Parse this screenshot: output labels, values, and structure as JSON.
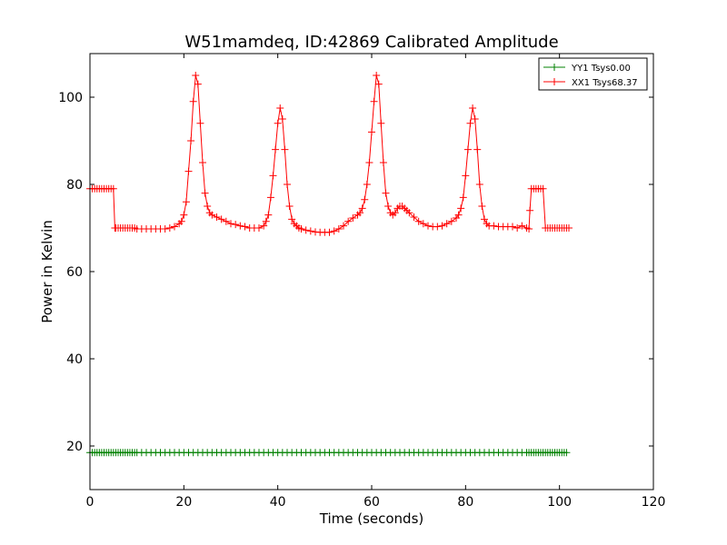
{
  "chart_data": {
    "type": "line",
    "title": "W51mamdeq, ID:42869 Calibrated Amplitude",
    "xlabel": "Time (seconds)",
    "ylabel": "Power in Kelvin",
    "xlim": [
      0,
      120
    ],
    "ylim": [
      10,
      110
    ],
    "xticks": [
      0,
      20,
      40,
      60,
      80,
      100,
      120
    ],
    "yticks": [
      20,
      40,
      60,
      80,
      100
    ],
    "grid": false,
    "legend_position": "top-right",
    "marker": "+",
    "series": [
      {
        "name": "YY1 Tsys0.00",
        "color": "#008000",
        "x": [
          0.0,
          0.5,
          1.0,
          1.5,
          2.0,
          2.5,
          3.0,
          3.5,
          4.0,
          4.5,
          5.0,
          5.5,
          6.0,
          6.5,
          7.0,
          7.5,
          8.0,
          8.5,
          9.0,
          9.5,
          10.0,
          11.0,
          12.0,
          13.0,
          14.0,
          15.0,
          16.0,
          17.0,
          18.0,
          19.0,
          20.0,
          21.0,
          22.0,
          23.0,
          24.0,
          25.0,
          26.0,
          27.0,
          28.0,
          29.0,
          30.0,
          31.0,
          32.0,
          33.0,
          34.0,
          35.0,
          36.0,
          37.0,
          38.0,
          39.0,
          40.0,
          41.0,
          42.0,
          43.0,
          44.0,
          45.0,
          46.0,
          47.0,
          48.0,
          49.0,
          50.0,
          51.0,
          52.0,
          53.0,
          54.0,
          55.0,
          56.0,
          57.0,
          58.0,
          59.0,
          60.0,
          61.0,
          62.0,
          63.0,
          64.0,
          65.0,
          66.0,
          67.0,
          68.0,
          69.0,
          70.0,
          71.0,
          72.0,
          73.0,
          74.0,
          75.0,
          76.0,
          77.0,
          78.0,
          79.0,
          80.0,
          81.0,
          82.0,
          83.0,
          84.0,
          85.0,
          86.0,
          87.0,
          88.0,
          89.0,
          90.0,
          91.0,
          92.0,
          93.0,
          93.5,
          94.0,
          94.5,
          95.0,
          95.5,
          96.0,
          96.5,
          97.0,
          97.5,
          98.0,
          98.5,
          99.0,
          99.5,
          100.0,
          100.5,
          101.0,
          101.5
        ],
        "y": [
          18.5,
          18.5,
          18.5,
          18.5,
          18.5,
          18.5,
          18.5,
          18.5,
          18.5,
          18.5,
          18.5,
          18.5,
          18.5,
          18.5,
          18.5,
          18.5,
          18.5,
          18.5,
          18.5,
          18.5,
          18.5,
          18.5,
          18.5,
          18.5,
          18.5,
          18.5,
          18.5,
          18.5,
          18.5,
          18.5,
          18.5,
          18.5,
          18.5,
          18.5,
          18.5,
          18.5,
          18.5,
          18.5,
          18.5,
          18.5,
          18.5,
          18.5,
          18.5,
          18.5,
          18.5,
          18.5,
          18.5,
          18.5,
          18.5,
          18.5,
          18.5,
          18.5,
          18.5,
          18.5,
          18.5,
          18.5,
          18.5,
          18.5,
          18.5,
          18.5,
          18.5,
          18.5,
          18.5,
          18.5,
          18.5,
          18.5,
          18.5,
          18.5,
          18.5,
          18.5,
          18.5,
          18.5,
          18.5,
          18.5,
          18.5,
          18.5,
          18.5,
          18.5,
          18.5,
          18.5,
          18.5,
          18.5,
          18.5,
          18.5,
          18.5,
          18.5,
          18.5,
          18.5,
          18.5,
          18.5,
          18.5,
          18.5,
          18.5,
          18.5,
          18.5,
          18.5,
          18.5,
          18.5,
          18.5,
          18.5,
          18.5,
          18.5,
          18.5,
          18.5,
          18.5,
          18.5,
          18.5,
          18.5,
          18.5,
          18.5,
          18.5,
          18.5,
          18.5,
          18.5,
          18.5,
          18.5,
          18.5,
          18.5,
          18.5,
          18.5,
          18.5
        ]
      },
      {
        "name": "XX1 Tsys68.37",
        "color": "#ff0000",
        "x": [
          0.0,
          0.5,
          1.0,
          1.5,
          2.0,
          2.5,
          3.0,
          3.5,
          4.0,
          4.5,
          5.0,
          5.3,
          5.5,
          6.0,
          6.5,
          7.0,
          7.5,
          8.0,
          8.5,
          9.0,
          9.5,
          10.0,
          11.0,
          12.0,
          13.0,
          14.0,
          15.0,
          16.0,
          17.0,
          18.0,
          19.0,
          19.5,
          20.0,
          20.5,
          21.0,
          21.5,
          22.0,
          22.5,
          23.0,
          23.5,
          24.0,
          24.5,
          25.0,
          25.5,
          26.0,
          27.0,
          28.0,
          29.0,
          30.0,
          31.0,
          32.0,
          33.0,
          34.0,
          35.0,
          36.0,
          37.0,
          37.5,
          38.0,
          38.5,
          39.0,
          39.5,
          40.0,
          40.5,
          41.0,
          41.5,
          42.0,
          42.5,
          43.0,
          43.5,
          44.0,
          44.5,
          45.0,
          46.0,
          47.0,
          48.0,
          49.0,
          50.0,
          51.0,
          52.0,
          53.0,
          54.0,
          55.0,
          56.0,
          57.0,
          57.5,
          58.0,
          58.5,
          59.0,
          59.5,
          60.0,
          60.5,
          61.0,
          61.5,
          62.0,
          62.5,
          63.0,
          63.5,
          64.0,
          64.5,
          65.0,
          65.5,
          66.0,
          66.5,
          67.0,
          67.5,
          68.0,
          69.0,
          70.0,
          71.0,
          72.0,
          73.0,
          74.0,
          75.0,
          76.0,
          77.0,
          78.0,
          78.5,
          79.0,
          79.5,
          80.0,
          80.5,
          81.0,
          81.5,
          82.0,
          82.5,
          83.0,
          83.5,
          84.0,
          84.5,
          85.0,
          86.0,
          87.0,
          88.0,
          89.0,
          90.0,
          91.0,
          92.0,
          93.0,
          93.5,
          93.7,
          94.0,
          94.5,
          95.0,
          95.5,
          96.0,
          96.5,
          97.0,
          97.5,
          98.0,
          98.5,
          99.0,
          99.5,
          100.0,
          100.5,
          101.0,
          101.5,
          102.0
        ],
        "y": [
          79,
          79,
          79,
          79,
          79,
          79,
          79,
          79,
          79,
          79,
          79,
          70,
          70,
          70,
          70,
          70,
          70,
          70,
          70,
          70,
          70,
          69.8,
          69.8,
          69.8,
          69.8,
          69.8,
          69.8,
          69.8,
          70,
          70.3,
          71,
          71.5,
          73,
          76,
          83,
          90,
          99,
          105,
          103,
          94,
          85,
          78,
          75,
          73.5,
          73,
          72.5,
          72,
          71.5,
          71,
          70.8,
          70.5,
          70.3,
          70,
          70,
          70,
          70.5,
          71.5,
          73,
          77,
          82,
          88,
          94,
          97.5,
          95,
          88,
          80,
          75,
          72,
          71,
          70.5,
          70,
          69.8,
          69.5,
          69.3,
          69.1,
          69.0,
          69.0,
          69.0,
          69.3,
          69.8,
          70.5,
          71.5,
          72.3,
          73,
          73.5,
          74.5,
          76.5,
          80,
          85,
          92,
          99,
          105,
          103,
          94,
          85,
          78,
          75,
          73.5,
          73,
          73.5,
          74.5,
          75,
          75,
          74.5,
          74,
          73.5,
          72.5,
          71.5,
          71,
          70.5,
          70.3,
          70.3,
          70.5,
          71,
          71.5,
          72.3,
          73,
          74.5,
          77,
          82,
          88,
          94,
          97.5,
          95,
          88,
          80,
          75,
          72,
          71,
          70.5,
          70.5,
          70.3,
          70.3,
          70.3,
          70.3,
          70,
          70.5,
          70,
          69.8,
          74,
          79,
          79,
          79,
          79,
          79,
          79,
          70,
          70,
          70,
          70,
          70,
          70,
          70,
          70,
          70,
          70,
          70
        ]
      }
    ]
  }
}
